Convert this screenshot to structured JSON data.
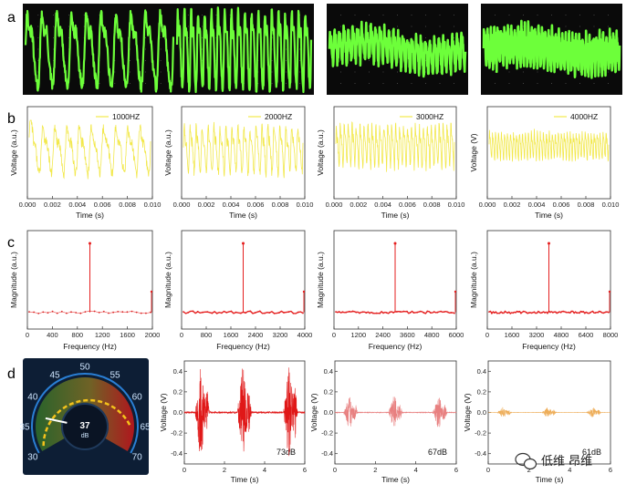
{
  "panel_letters": [
    "a",
    "b",
    "c",
    "d"
  ],
  "colors": {
    "osc_bg": "#0a0a0a",
    "osc_trace": "#6dff3a",
    "yellow": "#f2e84b",
    "red": "#e51f1f",
    "spec_dots": "#d62828",
    "red_wave": "#e01818",
    "pink_wave": "#e88080",
    "orange_wave": "#eeae5a",
    "gauge_bg": "#0d1e35"
  },
  "chart_data": [
    {
      "id": "a1",
      "type": "line",
      "title": "oscilloscope capture",
      "frequency_hz": 1000,
      "cycles": 10
    },
    {
      "id": "a2",
      "type": "line",
      "title": "oscilloscope capture",
      "frequency_hz": 2000,
      "cycles": 20
    },
    {
      "id": "a3",
      "type": "line",
      "title": "oscilloscope capture",
      "frequency_hz": 3000,
      "cycles": 30
    },
    {
      "id": "a4",
      "type": "line",
      "title": "oscilloscope capture",
      "frequency_hz": 4000,
      "cycles": 40
    },
    {
      "id": "b1",
      "type": "line",
      "legend": "1000HZ",
      "frequency_hz": 1000,
      "xlabel": "Time (s)",
      "ylabel": "Voltage (a.u.)",
      "xlim": [
        0,
        0.01
      ],
      "xticks": [
        "0.000",
        "0.002",
        "0.004",
        "0.006",
        "0.008",
        "0.010"
      ]
    },
    {
      "id": "b2",
      "type": "line",
      "legend": "2000HZ",
      "frequency_hz": 2000,
      "xlabel": "Time (s)",
      "ylabel": "Voltage (a.u.)",
      "xlim": [
        0,
        0.01
      ],
      "xticks": [
        "0.000",
        "0.002",
        "0.004",
        "0.006",
        "0.008",
        "0.010"
      ]
    },
    {
      "id": "b3",
      "type": "line",
      "legend": "3000HZ",
      "frequency_hz": 3000,
      "xlabel": "Time (s)",
      "ylabel": "Voltage (a.u.)",
      "xlim": [
        0,
        0.01
      ],
      "xticks": [
        "0.000",
        "0.002",
        "0.004",
        "0.006",
        "0.008",
        "0.010"
      ]
    },
    {
      "id": "b4",
      "type": "line",
      "legend": "4000HZ",
      "frequency_hz": 4000,
      "xlabel": "Time (s)",
      "ylabel": "Voltage (V)",
      "xlim": [
        0,
        0.01
      ],
      "xticks": [
        "0.000",
        "0.002",
        "0.004",
        "0.006",
        "0.008",
        "0.010"
      ]
    },
    {
      "id": "c1",
      "type": "scatter",
      "xlabel": "Frequency (Hz)",
      "ylabel": "Magnitude (a.u.)",
      "xlim": [
        0,
        2000
      ],
      "xticks": [
        "0",
        "400",
        "800",
        "1200",
        "1600",
        "2000"
      ],
      "peak_hz": 1000,
      "edge_hz": 2000
    },
    {
      "id": "c2",
      "type": "scatter",
      "xlabel": "Frequency (Hz)",
      "ylabel": "Magnitude (a.u.)",
      "xlim": [
        0,
        4000
      ],
      "xticks": [
        "0",
        "800",
        "1600",
        "2400",
        "3200",
        "4000"
      ],
      "peak_hz": 2000,
      "edge_hz": 4000
    },
    {
      "id": "c3",
      "type": "scatter",
      "xlabel": "Frequency (Hz)",
      "ylabel": "Magnitude (a.u.)",
      "xlim": [
        0,
        6000
      ],
      "xticks": [
        "0",
        "1200",
        "2400",
        "3600",
        "4800",
        "6000"
      ],
      "peak_hz": 3000,
      "edge_hz": 6000
    },
    {
      "id": "c4",
      "type": "scatter",
      "xlabel": "Frequency (Hz)",
      "ylabel": "Magnitude (a.u.)",
      "xlim": [
        0,
        8000
      ],
      "xticks": [
        "0",
        "1600",
        "3200",
        "4800",
        "6400",
        "8000"
      ],
      "peak_hz": 4000,
      "edge_hz": 8000
    },
    {
      "id": "d_gauge",
      "type": "gauge",
      "value": 37,
      "unit": "dB",
      "min": 30,
      "max": 70,
      "ticks": [
        "30",
        "35",
        "40",
        "45",
        "50",
        "55",
        "60",
        "65",
        "70"
      ]
    },
    {
      "id": "d1",
      "type": "line",
      "label": "73dB",
      "xlabel": "Time (s)",
      "ylabel": "Voltage (V)",
      "xlim": [
        0,
        6
      ],
      "ylim": [
        -0.5,
        0.5
      ],
      "xticks": [
        "0",
        "2",
        "4",
        "6"
      ],
      "yticks": [
        "-0.4",
        "-0.2",
        "0.0",
        "0.2",
        "0.4"
      ],
      "bursts_s": [
        0.7,
        2.8,
        5.1
      ],
      "amplitude_v": 0.44
    },
    {
      "id": "d2",
      "type": "line",
      "label": "67dB",
      "xlabel": "Time (s)",
      "ylabel": "Voltage (V)",
      "xlim": [
        0,
        6
      ],
      "ylim": [
        -0.5,
        0.5
      ],
      "xticks": [
        "0",
        "2",
        "4",
        "6"
      ],
      "yticks": [
        "-0.4",
        "-0.2",
        "0.0",
        "0.2",
        "0.4"
      ],
      "bursts_s": [
        0.6,
        2.8,
        5.0
      ],
      "amplitude_v": 0.16
    },
    {
      "id": "d3",
      "type": "line",
      "label": "61dB",
      "xlabel": "Time (s)",
      "ylabel": "Voltage (V)",
      "xlim": [
        0,
        6
      ],
      "ylim": [
        -0.5,
        0.5
      ],
      "xticks": [
        "0",
        "2",
        "4",
        "6"
      ],
      "yticks": [
        "-0.4",
        "-0.2",
        "0.0",
        "0.2",
        "0.4"
      ],
      "bursts_s": [
        0.6,
        2.8,
        5.0
      ],
      "amplitude_v": 0.05
    }
  ],
  "watermark": {
    "text": "低维 昂维",
    "icon": "wechat-icon"
  }
}
